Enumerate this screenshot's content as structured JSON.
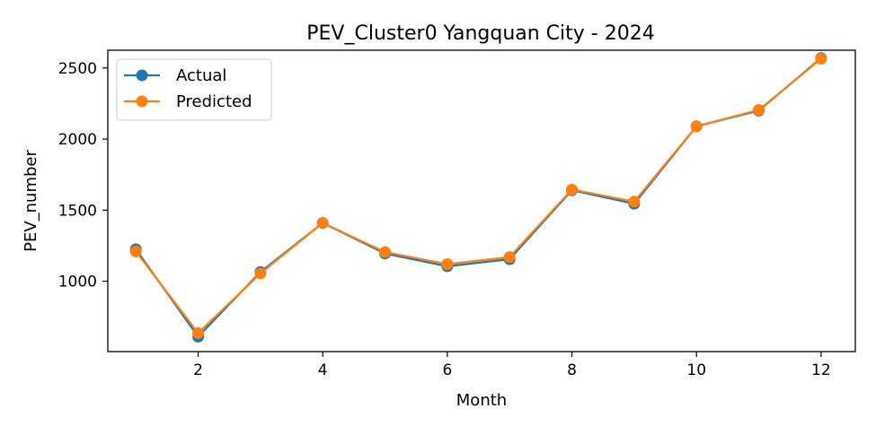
{
  "chart_data": {
    "type": "line",
    "title": "PEV_Cluster0 Yangquan City - 2024",
    "xlabel": "Month",
    "ylabel": "PEV_number",
    "x": [
      1,
      2,
      3,
      4,
      5,
      6,
      7,
      8,
      9,
      10,
      11,
      12
    ],
    "xlim": [
      0.55,
      12.55
    ],
    "ylim": [
      505,
      2625
    ],
    "xticks": [
      2,
      4,
      6,
      8,
      10,
      12
    ],
    "yticks": [
      1000,
      1500,
      2000,
      2500
    ],
    "grid": false,
    "legend_position": "upper-left",
    "series": [
      {
        "name": "Actual",
        "color": "#1f77b4",
        "marker": "circle",
        "values": [
          1225,
          610,
          1065,
          1410,
          1195,
          1105,
          1155,
          1640,
          1545,
          2090,
          2200,
          2570
        ]
      },
      {
        "name": "Predicted",
        "color": "#ff7f0e",
        "marker": "circle",
        "values": [
          1210,
          635,
          1055,
          1410,
          1205,
          1120,
          1170,
          1645,
          1560,
          2090,
          2205,
          2565
        ]
      }
    ]
  }
}
